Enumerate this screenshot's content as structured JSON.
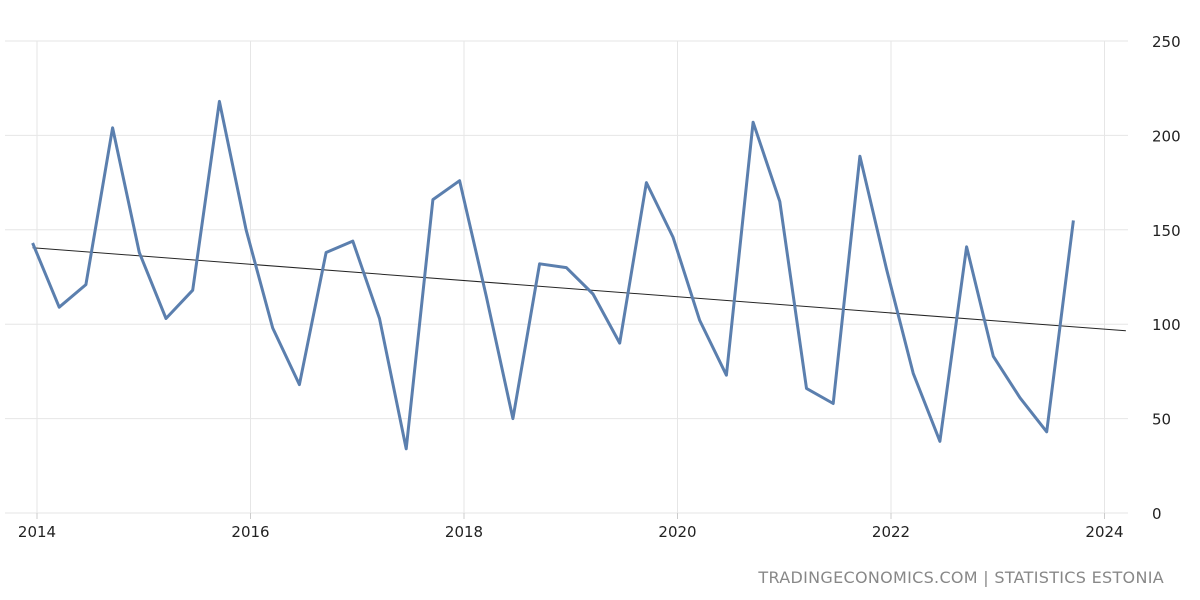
{
  "chart_data": {
    "type": "line",
    "title": "",
    "xlabel": "",
    "ylabel": "",
    "ylim": [
      0,
      250
    ],
    "xlim": [
      2014.0,
      2024.2
    ],
    "grid": true,
    "y_axis_side": "right",
    "y_ticks": [
      0,
      50,
      100,
      150,
      200,
      250
    ],
    "x_ticks": [
      "2014",
      "2016",
      "2018",
      "2020",
      "2022",
      "2024"
    ],
    "x": [
      "2013-12",
      "2014-03",
      "2014-06",
      "2014-09",
      "2014-12",
      "2015-03",
      "2015-06",
      "2015-09",
      "2015-12",
      "2016-03",
      "2016-06",
      "2016-09",
      "2016-12",
      "2017-03",
      "2017-06",
      "2017-09",
      "2017-12",
      "2018-03",
      "2018-06",
      "2018-09",
      "2018-12",
      "2019-03",
      "2019-06",
      "2019-09",
      "2019-12",
      "2020-03",
      "2020-06",
      "2020-09",
      "2020-12",
      "2021-03",
      "2021-06",
      "2021-09",
      "2021-12",
      "2022-03",
      "2022-06",
      "2022-09",
      "2022-12",
      "2023-03",
      "2023-06",
      "2023-09"
    ],
    "series": [
      {
        "color": "#5b7fae",
        "values": [
          143,
          109,
          121,
          204,
          138,
          103,
          118,
          218,
          150,
          98,
          68,
          138,
          144,
          103,
          34,
          166,
          176,
          115,
          50,
          132,
          130,
          116,
          90,
          175,
          146,
          102,
          73,
          207,
          165,
          66,
          58,
          189,
          129,
          74,
          38,
          141,
          83,
          61,
          43,
          155
        ]
      }
    ],
    "trendline": {
      "color": "#000000",
      "values": [
        140.5,
        96.5
      ]
    }
  },
  "source": "TRADINGECONOMICS.COM  |  STATISTICS ESTONIA"
}
